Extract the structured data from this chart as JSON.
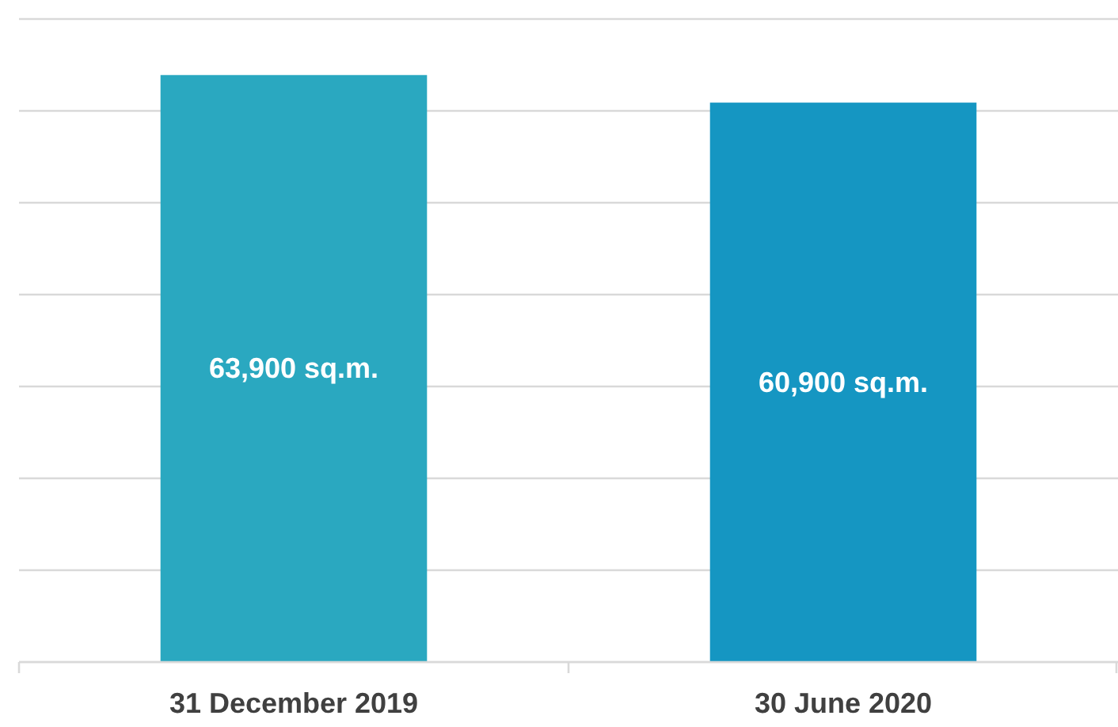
{
  "chart_data": {
    "type": "bar",
    "categories": [
      "31 December 2019",
      "30 June 2020"
    ],
    "values": [
      63900,
      60900
    ],
    "colors": [
      "#2aa8c0",
      "#1596c2"
    ],
    "value_labels": [
      "63,900 sq.m.",
      "60,900 sq.m."
    ],
    "ylim": [
      0,
      70000
    ],
    "yticks": [
      {
        "value": 0,
        "label": null
      },
      {
        "value": 10000,
        "label": null
      },
      {
        "value": 20000,
        "label": null
      },
      {
        "value": 30000,
        "label": null
      },
      {
        "value": 40000,
        "label": null
      },
      {
        "value": 50000,
        "label": null
      },
      {
        "value": 60000,
        "label": null
      },
      {
        "value": 70000,
        "label": null
      }
    ],
    "grid": "y",
    "tick_labels": "x"
  }
}
